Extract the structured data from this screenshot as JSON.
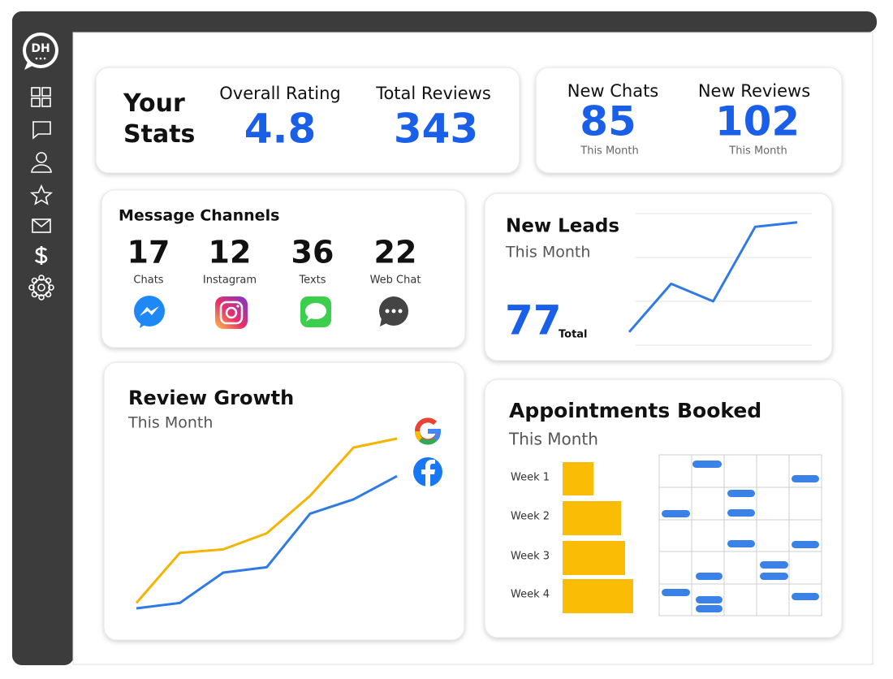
{
  "logo": "DH",
  "stats": {
    "title": "Your Stats",
    "overall_rating": {
      "label": "Overall Rating",
      "value": 4.8
    },
    "total_reviews": {
      "label": "Total Reviews",
      "value": 343
    }
  },
  "monthly": [
    {
      "label": "New Chats",
      "value": 85,
      "note": "This Month"
    },
    {
      "label": "New Reviews",
      "value": 102,
      "note": "This Month"
    }
  ],
  "message_channels": {
    "title": "Message Channels",
    "channels": [
      {
        "count": 17,
        "label": "Chats"
      },
      {
        "count": 12,
        "label": "Instagram"
      },
      {
        "count": 36,
        "label": "Texts"
      },
      {
        "count": 22,
        "label": "Web Chat"
      }
    ]
  },
  "new_leads": {
    "title": "New Leads",
    "subtitle": "This Month",
    "total": 77,
    "total_label": "Total",
    "chart": {
      "type": "line",
      "values": [
        3,
        14,
        10,
        27,
        28
      ],
      "color": "#2f7be5",
      "ylim": [
        0,
        30
      ],
      "yticks": [
        0,
        10,
        20,
        30
      ],
      "grid": true
    }
  },
  "review_growth": {
    "title": "Review Growth",
    "subtitle": "This Month",
    "chart": {
      "type": "line",
      "ylim": [
        0,
        100
      ],
      "series": [
        {
          "color": "#f4b400",
          "values": [
            8,
            36,
            38,
            47,
            68,
            95,
            100
          ]
        },
        {
          "color": "#2f7be5",
          "values": [
            5,
            8,
            25,
            28,
            58,
            66,
            79
          ]
        }
      ]
    }
  },
  "appointments": {
    "title": "Appointments Booked",
    "subtitle": "This Month",
    "chart": {
      "type": "bar",
      "color": "#fbbc05",
      "xlim": [
        0,
        100
      ],
      "categories": [
        "Week 1",
        "Week 2",
        "Week 3",
        "Week 4"
      ],
      "values": [
        38,
        72,
        77,
        87
      ]
    }
  }
}
